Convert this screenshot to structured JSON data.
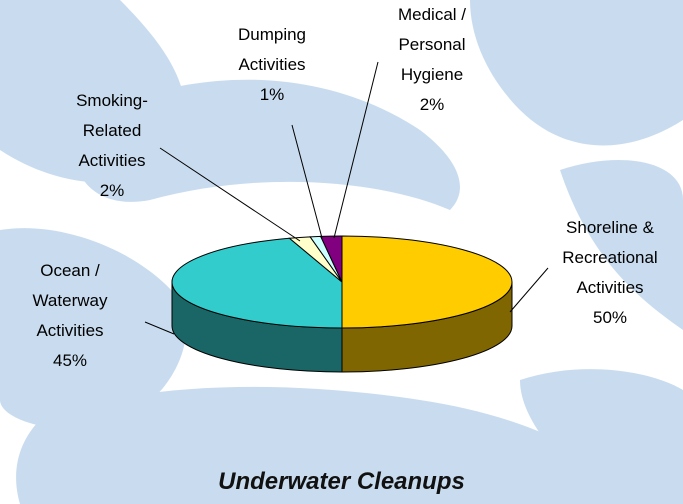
{
  "chart_data": {
    "type": "pie3d",
    "title": "Underwater Cleanups",
    "categories": [
      "Shoreline &\nRecreational\nActivities",
      "Ocean /\nWaterway\nActivities",
      "Smoking-\nRelated\nActivities",
      "Dumping\nActivities",
      "Medical /\nPersonal\nHygiene"
    ],
    "values": [
      50,
      45,
      2,
      1,
      2
    ],
    "value_labels": [
      "50%",
      "45%",
      "2%",
      "1%",
      "2%"
    ],
    "colors": [
      "#ffcc00",
      "#33cccc",
      "#ffffcc",
      "#ccffff",
      "#800080"
    ]
  }
}
